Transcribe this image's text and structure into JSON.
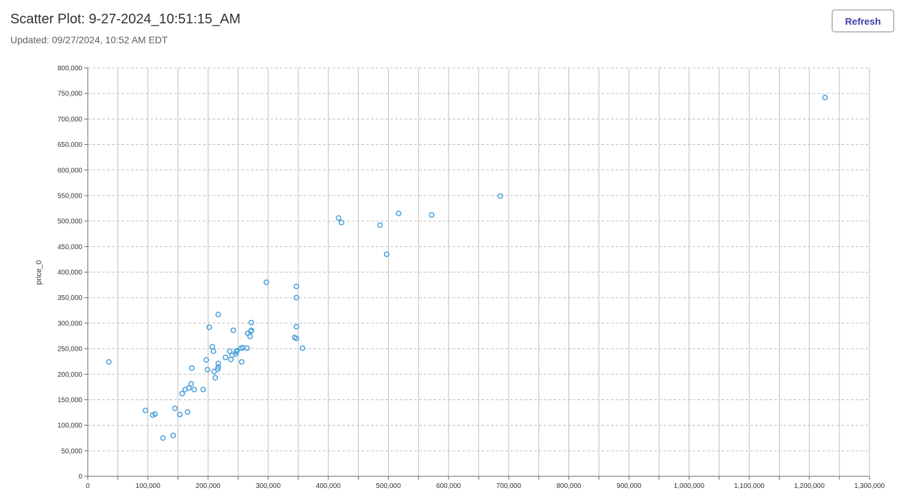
{
  "header": {
    "title": "Scatter Plot: 9-27-2024_10:51:15_AM",
    "updated": "Updated: 09/27/2024, 10:52 AM EDT",
    "refresh_label": "Refresh"
  },
  "colors": {
    "point": "#4ea3de",
    "grid": "#bdbdbd",
    "axis": "#666666"
  },
  "chart_data": {
    "type": "scatter",
    "title": "",
    "xlabel": "",
    "ylabel": "price_0",
    "xlim": [
      0,
      1300000
    ],
    "ylim": [
      0,
      800000
    ],
    "grid": true,
    "x_ticks": [
      0,
      100000,
      200000,
      300000,
      400000,
      500000,
      600000,
      700000,
      800000,
      900000,
      1000000,
      1100000,
      1200000,
      1300000
    ],
    "x_tick_labels": [
      "0",
      "100,000",
      "200,000",
      "300,000",
      "400,000",
      "500,000",
      "600,000",
      "700,000",
      "800,000",
      "900,000",
      "1,000,000",
      "1,100,000",
      "1,200,000",
      "1,300,000"
    ],
    "y_ticks": [
      0,
      50000,
      100000,
      150000,
      200000,
      250000,
      300000,
      350000,
      400000,
      450000,
      500000,
      550000,
      600000,
      650000,
      700000,
      750000,
      800000
    ],
    "y_tick_labels": [
      "0",
      "50,000",
      "100,000",
      "150,000",
      "200,000",
      "250,000",
      "300,000",
      "350,000",
      "400,000",
      "450,000",
      "500,000",
      "550,000",
      "600,000",
      "650,000",
      "700,000",
      "750,000",
      "800,000"
    ],
    "points": [
      {
        "x": 35000,
        "y": 224000
      },
      {
        "x": 96000,
        "y": 129000
      },
      {
        "x": 108000,
        "y": 120000
      },
      {
        "x": 112000,
        "y": 122000
      },
      {
        "x": 125000,
        "y": 75000
      },
      {
        "x": 142000,
        "y": 80000
      },
      {
        "x": 145000,
        "y": 133000
      },
      {
        "x": 153000,
        "y": 121000
      },
      {
        "x": 157000,
        "y": 162000
      },
      {
        "x": 162000,
        "y": 170000
      },
      {
        "x": 166000,
        "y": 126000
      },
      {
        "x": 168000,
        "y": 173000
      },
      {
        "x": 172000,
        "y": 181000
      },
      {
        "x": 173000,
        "y": 212000
      },
      {
        "x": 177000,
        "y": 170000
      },
      {
        "x": 192000,
        "y": 170000
      },
      {
        "x": 197000,
        "y": 228000
      },
      {
        "x": 199000,
        "y": 209000
      },
      {
        "x": 202000,
        "y": 292000
      },
      {
        "x": 207000,
        "y": 254000
      },
      {
        "x": 209000,
        "y": 245000
      },
      {
        "x": 210000,
        "y": 205000
      },
      {
        "x": 212000,
        "y": 193000
      },
      {
        "x": 216000,
        "y": 210000
      },
      {
        "x": 217000,
        "y": 214000
      },
      {
        "x": 217000,
        "y": 221000
      },
      {
        "x": 217000,
        "y": 317000
      },
      {
        "x": 229000,
        "y": 233000
      },
      {
        "x": 236000,
        "y": 245000
      },
      {
        "x": 238000,
        "y": 229000
      },
      {
        "x": 240000,
        "y": 237000
      },
      {
        "x": 242000,
        "y": 286000
      },
      {
        "x": 246000,
        "y": 240000
      },
      {
        "x": 247000,
        "y": 244000
      },
      {
        "x": 248000,
        "y": 246000
      },
      {
        "x": 255000,
        "y": 251000
      },
      {
        "x": 256000,
        "y": 224000
      },
      {
        "x": 258000,
        "y": 252000
      },
      {
        "x": 265000,
        "y": 251000
      },
      {
        "x": 266000,
        "y": 280000
      },
      {
        "x": 270000,
        "y": 274000
      },
      {
        "x": 271000,
        "y": 284000
      },
      {
        "x": 272000,
        "y": 286000
      },
      {
        "x": 272000,
        "y": 301000
      },
      {
        "x": 297000,
        "y": 380000
      },
      {
        "x": 344000,
        "y": 272000
      },
      {
        "x": 347000,
        "y": 270000
      },
      {
        "x": 347000,
        "y": 293000
      },
      {
        "x": 347000,
        "y": 350000
      },
      {
        "x": 347000,
        "y": 372000
      },
      {
        "x": 357000,
        "y": 251000
      },
      {
        "x": 417000,
        "y": 506000
      },
      {
        "x": 422000,
        "y": 497000
      },
      {
        "x": 486000,
        "y": 492000
      },
      {
        "x": 497000,
        "y": 435000
      },
      {
        "x": 517000,
        "y": 515000
      },
      {
        "x": 572000,
        "y": 512000
      },
      {
        "x": 686000,
        "y": 549000
      },
      {
        "x": 1226000,
        "y": 742000
      }
    ]
  }
}
